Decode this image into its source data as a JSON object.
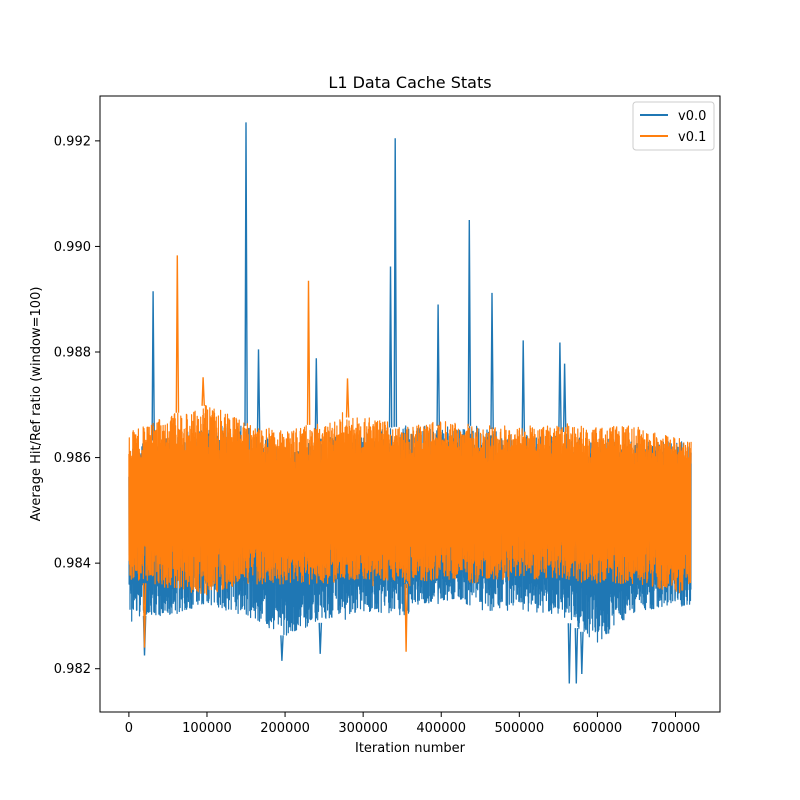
{
  "chart_data": {
    "type": "line",
    "title": "L1 Data Cache Stats",
    "xlabel": "Iteration number",
    "ylabel": "Average Hit/Ref ratio (window=100)",
    "xlim": [
      -37000,
      757000
    ],
    "ylim": [
      0.98118,
      0.99285
    ],
    "xticks": [
      0,
      100000,
      200000,
      300000,
      400000,
      500000,
      600000,
      700000
    ],
    "xtick_labels": [
      "0",
      "100000",
      "200000",
      "300000",
      "400000",
      "500000",
      "600000",
      "700000"
    ],
    "yticks": [
      0.982,
      0.984,
      0.986,
      0.988,
      0.99,
      0.992
    ],
    "ytick_labels": [
      "0.982",
      "0.984",
      "0.986",
      "0.988",
      "0.990",
      "0.992"
    ],
    "grid": false,
    "legend_position": "top-right",
    "x_range": [
      0,
      720000
    ],
    "series": [
      {
        "name": "v0.0",
        "color": "#1f77b4",
        "band": {
          "x": [
            0,
            50000,
            100000,
            150000,
            200000,
            250000,
            300000,
            350000,
            400000,
            450000,
            500000,
            550000,
            600000,
            650000,
            720000
          ],
          "low": [
            0.983,
            0.983,
            0.9832,
            0.983,
            0.9826,
            0.9829,
            0.9831,
            0.983,
            0.9833,
            0.9831,
            0.9831,
            0.983,
            0.9825,
            0.9831,
            0.9832
          ],
          "high": [
            0.9862,
            0.9864,
            0.9866,
            0.9866,
            0.9862,
            0.9864,
            0.9865,
            0.9866,
            0.9866,
            0.9866,
            0.9864,
            0.9865,
            0.9864,
            0.9863,
            0.9863
          ]
        },
        "spikes": [
          {
            "x": 31000,
            "y": 0.98915
          },
          {
            "x": 150000,
            "y": 0.99235
          },
          {
            "x": 166000,
            "y": 0.98805
          },
          {
            "x": 240000,
            "y": 0.98788
          },
          {
            "x": 335000,
            "y": 0.98962
          },
          {
            "x": 341000,
            "y": 0.99205
          },
          {
            "x": 396000,
            "y": 0.9889
          },
          {
            "x": 436000,
            "y": 0.9905
          },
          {
            "x": 465000,
            "y": 0.98912
          },
          {
            "x": 505000,
            "y": 0.98822
          },
          {
            "x": 552000,
            "y": 0.98818
          },
          {
            "x": 558000,
            "y": 0.98778
          }
        ],
        "dips": [
          {
            "x": 20000,
            "y": 0.98225
          },
          {
            "x": 196000,
            "y": 0.98215
          },
          {
            "x": 245000,
            "y": 0.98228
          },
          {
            "x": 564000,
            "y": 0.98172
          },
          {
            "x": 573000,
            "y": 0.98172
          },
          {
            "x": 580000,
            "y": 0.9819
          }
        ]
      },
      {
        "name": "v0.1",
        "color": "#ff7f0e",
        "band": {
          "x": [
            0,
            50000,
            100000,
            150000,
            200000,
            250000,
            300000,
            350000,
            400000,
            450000,
            500000,
            550000,
            600000,
            650000,
            720000
          ],
          "low": [
            0.9837,
            0.9835,
            0.9834,
            0.9836,
            0.9836,
            0.9836,
            0.9837,
            0.9836,
            0.9837,
            0.9836,
            0.9837,
            0.9837,
            0.9836,
            0.9836,
            0.9834
          ],
          "high": [
            0.9865,
            0.9868,
            0.987,
            0.9867,
            0.9865,
            0.9867,
            0.9868,
            0.9866,
            0.9867,
            0.9866,
            0.9866,
            0.9866,
            0.9866,
            0.9866,
            0.9863
          ]
        },
        "spikes": [
          {
            "x": 62000,
            "y": 0.98983
          },
          {
            "x": 95000,
            "y": 0.98752
          },
          {
            "x": 230000,
            "y": 0.98935
          },
          {
            "x": 280000,
            "y": 0.9875
          }
        ],
        "dips": [
          {
            "x": 355000,
            "y": 0.98232
          },
          {
            "x": 20000,
            "y": 0.9824
          }
        ]
      }
    ]
  }
}
